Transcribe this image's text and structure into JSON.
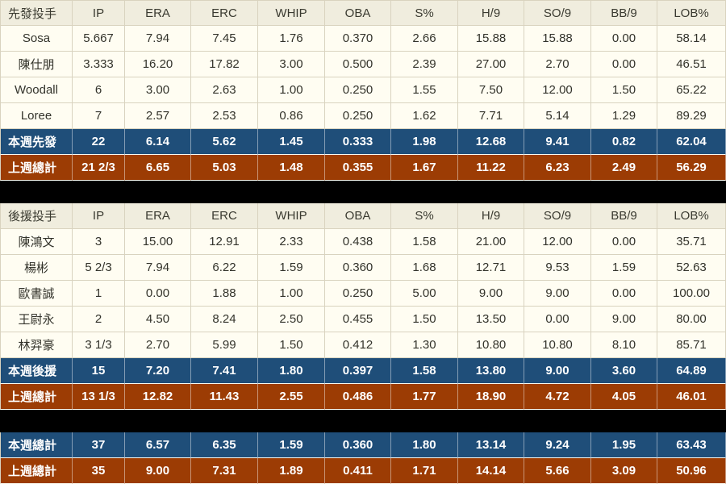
{
  "chart_data": {
    "type": "table",
    "stat_columns": [
      "IP",
      "ERA",
      "ERC",
      "WHIP",
      "OBA",
      "S%",
      "H/9",
      "SO/9",
      "BB/9",
      "LOB%"
    ],
    "tables": [
      {
        "title": "先發投手",
        "rows": [
          {
            "label": "Sosa",
            "style": "normal",
            "values": [
              "5.667",
              "7.94",
              "7.45",
              "1.76",
              "0.370",
              "2.66",
              "15.88",
              "15.88",
              "0.00",
              "58.14"
            ]
          },
          {
            "label": "陳仕朋",
            "style": "normal",
            "values": [
              "3.333",
              "16.20",
              "17.82",
              "3.00",
              "0.500",
              "2.39",
              "27.00",
              "2.70",
              "0.00",
              "46.51"
            ]
          },
          {
            "label": "Woodall",
            "style": "normal",
            "values": [
              "6",
              "3.00",
              "2.63",
              "1.00",
              "0.250",
              "1.55",
              "7.50",
              "12.00",
              "1.50",
              "65.22"
            ]
          },
          {
            "label": "Loree",
            "style": "normal",
            "values": [
              "7",
              "2.57",
              "2.53",
              "0.86",
              "0.250",
              "1.62",
              "7.71",
              "5.14",
              "1.29",
              "89.29"
            ]
          },
          {
            "label": "本週先發",
            "style": "total-blue",
            "values": [
              "22",
              "6.14",
              "5.62",
              "1.45",
              "0.333",
              "1.98",
              "12.68",
              "9.41",
              "0.82",
              "62.04"
            ]
          },
          {
            "label": "上週總計",
            "style": "total-brown",
            "values": [
              "21 2/3",
              "6.65",
              "5.03",
              "1.48",
              "0.355",
              "1.67",
              "11.22",
              "6.23",
              "2.49",
              "56.29"
            ]
          }
        ]
      },
      {
        "title": "後援投手",
        "rows": [
          {
            "label": "陳鴻文",
            "style": "normal",
            "values": [
              "3",
              "15.00",
              "12.91",
              "2.33",
              "0.438",
              "1.58",
              "21.00",
              "12.00",
              "0.00",
              "35.71"
            ]
          },
          {
            "label": "楊彬",
            "style": "normal",
            "values": [
              "5 2/3",
              "7.94",
              "6.22",
              "1.59",
              "0.360",
              "1.68",
              "12.71",
              "9.53",
              "1.59",
              "52.63"
            ]
          },
          {
            "label": "歐書誠",
            "style": "normal",
            "values": [
              "1",
              "0.00",
              "1.88",
              "1.00",
              "0.250",
              "5.00",
              "9.00",
              "9.00",
              "0.00",
              "100.00"
            ]
          },
          {
            "label": "王尉永",
            "style": "normal",
            "values": [
              "2",
              "4.50",
              "8.24",
              "2.50",
              "0.455",
              "1.50",
              "13.50",
              "0.00",
              "9.00",
              "80.00"
            ]
          },
          {
            "label": "林羿豪",
            "style": "normal",
            "values": [
              "3 1/3",
              "2.70",
              "5.99",
              "1.50",
              "0.412",
              "1.30",
              "10.80",
              "10.80",
              "8.10",
              "85.71"
            ]
          },
          {
            "label": "本週後援",
            "style": "total-blue",
            "values": [
              "15",
              "7.20",
              "7.41",
              "1.80",
              "0.397",
              "1.58",
              "13.80",
              "9.00",
              "3.60",
              "64.89"
            ]
          },
          {
            "label": "上週總計",
            "style": "total-brown",
            "values": [
              "13 1/3",
              "12.82",
              "11.43",
              "2.55",
              "0.486",
              "1.77",
              "18.90",
              "4.72",
              "4.05",
              "46.01"
            ]
          }
        ]
      },
      {
        "title": null,
        "rows": [
          {
            "label": "本週總計",
            "style": "total-blue",
            "values": [
              "37",
              "6.57",
              "6.35",
              "1.59",
              "0.360",
              "1.80",
              "13.14",
              "9.24",
              "1.95",
              "63.43"
            ]
          },
          {
            "label": "上週總計",
            "style": "total-brown",
            "values": [
              "35",
              "9.00",
              "7.31",
              "1.89",
              "0.411",
              "1.71",
              "14.14",
              "5.66",
              "3.09",
              "50.96"
            ]
          }
        ]
      }
    ],
    "colors": {
      "header_bg": "#f0edde",
      "row_bg": "#fffdf2",
      "total_blue": "#1f4e79",
      "total_brown": "#9c3c04",
      "separator_band": "#000000",
      "grid": "#d9d3bf",
      "text": "#33332b",
      "total_text": "#ffffff"
    }
  }
}
